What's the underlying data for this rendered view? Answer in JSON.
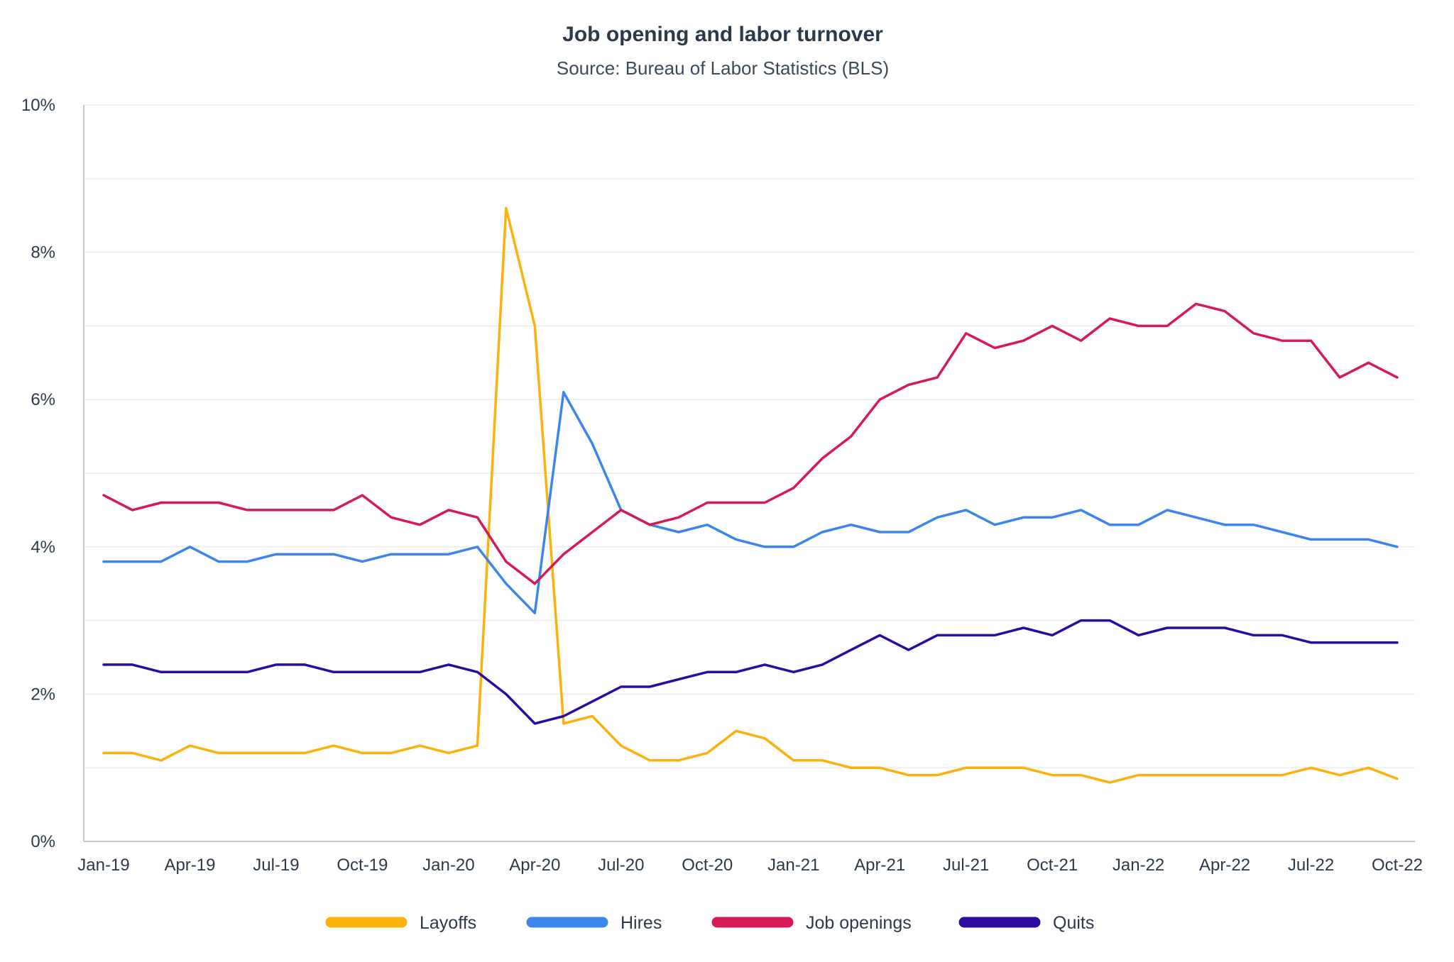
{
  "chart_data": {
    "type": "line",
    "title": "Job opening and labor turnover",
    "subtitle": "Source: Bureau of Labor Statistics (BLS)",
    "xlabel": "",
    "ylabel": "",
    "ylim": [
      0,
      10
    ],
    "yticks": [
      0,
      2,
      4,
      6,
      8,
      10
    ],
    "ytick_labels": [
      "0%",
      "2%",
      "4%",
      "6%",
      "8%",
      "10%"
    ],
    "x": [
      "Jan-19",
      "Feb-19",
      "Mar-19",
      "Apr-19",
      "May-19",
      "Jun-19",
      "Jul-19",
      "Aug-19",
      "Sep-19",
      "Oct-19",
      "Nov-19",
      "Dec-19",
      "Jan-20",
      "Feb-20",
      "Mar-20",
      "Apr-20",
      "May-20",
      "Jun-20",
      "Jul-20",
      "Aug-20",
      "Sep-20",
      "Oct-20",
      "Nov-20",
      "Dec-20",
      "Jan-21",
      "Feb-21",
      "Mar-21",
      "Apr-21",
      "May-21",
      "Jun-21",
      "Jul-21",
      "Aug-21",
      "Sep-21",
      "Oct-21",
      "Nov-21",
      "Dec-21",
      "Jan-22",
      "Feb-22",
      "Mar-22",
      "Apr-22",
      "May-22",
      "Jun-22",
      "Jul-22",
      "Aug-22",
      "Sep-22",
      "Oct-22"
    ],
    "xtick_labels": [
      "Jan-19",
      "Apr-19",
      "Jul-19",
      "Oct-19",
      "Jan-20",
      "Apr-20",
      "Jul-20",
      "Oct-20",
      "Jan-21",
      "Apr-21",
      "Jul-21",
      "Oct-21",
      "Jan-22",
      "Apr-22",
      "Jul-22",
      "Oct-22"
    ],
    "legend_position": "bottom",
    "grid": true,
    "series": [
      {
        "name": "Layoffs",
        "color": "#fbb20d",
        "values": [
          1.2,
          1.2,
          1.1,
          1.3,
          1.2,
          1.2,
          1.2,
          1.2,
          1.3,
          1.2,
          1.2,
          1.3,
          1.2,
          1.3,
          8.6,
          7.0,
          1.6,
          1.7,
          1.3,
          1.1,
          1.1,
          1.2,
          1.5,
          1.4,
          1.1,
          1.1,
          1.0,
          1.0,
          0.9,
          0.9,
          1.0,
          1.0,
          1.0,
          0.9,
          0.9,
          0.8,
          0.9,
          0.9,
          0.9,
          0.9,
          0.9,
          0.9,
          1.0,
          0.9,
          1.0,
          0.85
        ]
      },
      {
        "name": "Hires",
        "color": "#3b86ea",
        "values": [
          3.8,
          3.8,
          3.8,
          4.0,
          3.8,
          3.8,
          3.9,
          3.9,
          3.9,
          3.8,
          3.9,
          3.9,
          3.9,
          4.0,
          3.5,
          3.1,
          6.1,
          5.4,
          4.5,
          4.3,
          4.2,
          4.3,
          4.1,
          4.0,
          4.0,
          4.2,
          4.3,
          4.2,
          4.2,
          4.4,
          4.5,
          4.3,
          4.4,
          4.4,
          4.5,
          4.3,
          4.3,
          4.5,
          4.4,
          4.3,
          4.3,
          4.2,
          4.1,
          4.1,
          4.1,
          4.0
        ]
      },
      {
        "name": "Job openings",
        "color": "#d61a56",
        "values": [
          4.7,
          4.5,
          4.6,
          4.6,
          4.6,
          4.5,
          4.5,
          4.5,
          4.5,
          4.7,
          4.4,
          4.3,
          4.5,
          4.4,
          3.8,
          3.5,
          3.9,
          4.2,
          4.5,
          4.3,
          4.4,
          4.6,
          4.6,
          4.6,
          4.8,
          5.2,
          5.5,
          6.0,
          6.2,
          6.3,
          6.9,
          6.7,
          6.8,
          7.0,
          6.8,
          7.1,
          7.0,
          7.0,
          7.3,
          7.2,
          6.9,
          6.8,
          6.8,
          6.3,
          6.5,
          6.3
        ]
      },
      {
        "name": "Quits",
        "color": "#2d0aa0",
        "values": [
          2.4,
          2.4,
          2.3,
          2.3,
          2.3,
          2.3,
          2.4,
          2.4,
          2.3,
          2.3,
          2.3,
          2.3,
          2.4,
          2.3,
          2.0,
          1.6,
          1.7,
          1.9,
          2.1,
          2.1,
          2.2,
          2.3,
          2.3,
          2.4,
          2.3,
          2.4,
          2.6,
          2.8,
          2.6,
          2.8,
          2.8,
          2.8,
          2.9,
          2.8,
          3.0,
          3.0,
          2.8,
          2.9,
          2.9,
          2.9,
          2.8,
          2.8,
          2.7,
          2.7,
          2.7,
          2.7
        ]
      }
    ]
  }
}
